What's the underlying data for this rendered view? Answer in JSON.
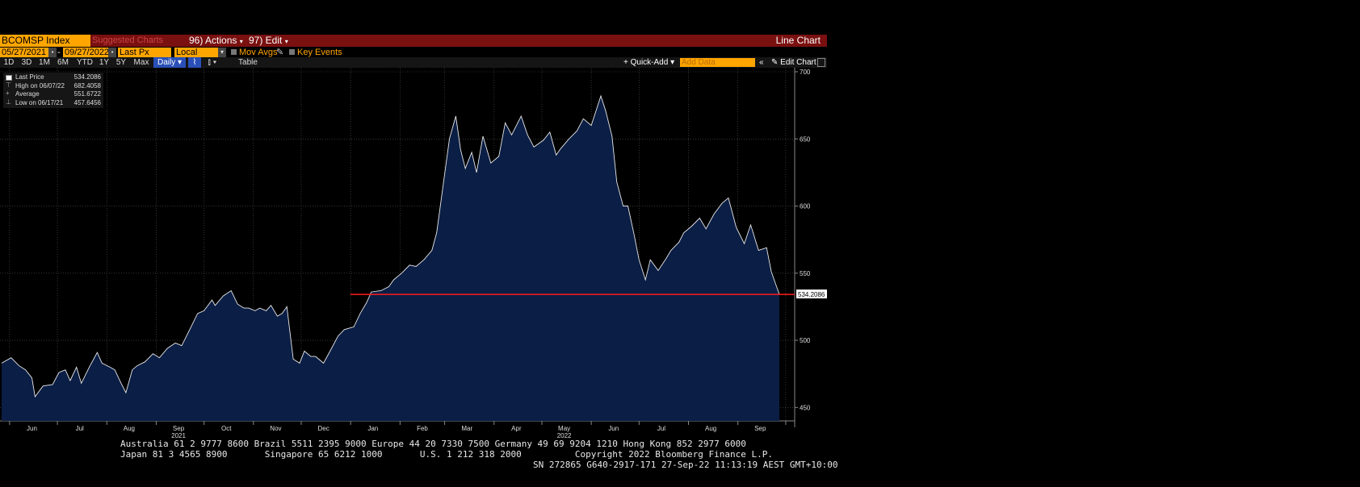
{
  "toolbar": {
    "ticker": "BCOMSP Index",
    "suggested": "Suggested Charts",
    "actions": "96) Actions",
    "edit": "97) Edit",
    "chart_type": "Line Chart"
  },
  "settings": {
    "start_date": "05/27/2021",
    "end_date": "09/27/2022",
    "field": "Last Px",
    "currency": "Local CCY",
    "mov_avgs": "Mov Avgs",
    "key_events": "Key Events"
  },
  "range_bar": {
    "ranges": [
      "1D",
      "3D",
      "1M",
      "6M",
      "YTD",
      "1Y",
      "5Y",
      "Max"
    ],
    "period": "Daily",
    "table": "Table",
    "quick_add": "Quick-Add",
    "add_data_placeholder": "Add Data",
    "edit_chart": "Edit Chart"
  },
  "legend": {
    "last_label": "Last Price",
    "last_value": "534.2086",
    "high_label": "High on 06/07/22",
    "high_value": "682.4058",
    "avg_label": "Average",
    "avg_value": "551.6722",
    "low_label": "Low on 06/17/21",
    "low_value": "457.6456"
  },
  "colors": {
    "area": "#0b1e45",
    "line": "#e8e8e8",
    "reference_line": "#ff1a1a",
    "accent": "#ffa500",
    "header": "#7a1010"
  },
  "chart_data": {
    "type": "area",
    "title": "",
    "xlabel": "",
    "ylabel": "",
    "ylim": [
      440,
      703
    ],
    "yticks": [
      450,
      500,
      550,
      600,
      650,
      700
    ],
    "month_labels": [
      "Jun",
      "Jul",
      "Aug",
      "Sep",
      "Oct",
      "Nov",
      "Dec",
      "Jan",
      "Feb",
      "Mar",
      "Apr",
      "May",
      "Jun",
      "Jul",
      "Aug",
      "Sep"
    ],
    "year_labels": [
      "2021",
      "2022"
    ],
    "last_price_label": "534.2086",
    "reference_line": {
      "value": 534.2086,
      "from": "2022-01-01"
    },
    "series": [
      {
        "points": [
          [
            "2021-05-27",
            483
          ],
          [
            "2021-06-02",
            487
          ],
          [
            "2021-06-07",
            481
          ],
          [
            "2021-06-11",
            478
          ],
          [
            "2021-06-15",
            472
          ],
          [
            "2021-06-17",
            458
          ],
          [
            "2021-06-22",
            466
          ],
          [
            "2021-06-28",
            467
          ],
          [
            "2021-07-02",
            476
          ],
          [
            "2021-07-06",
            478
          ],
          [
            "2021-07-09",
            470
          ],
          [
            "2021-07-13",
            480
          ],
          [
            "2021-07-16",
            468
          ],
          [
            "2021-07-21",
            480
          ],
          [
            "2021-07-26",
            491
          ],
          [
            "2021-07-29",
            483
          ],
          [
            "2021-08-03",
            480
          ],
          [
            "2021-08-06",
            478
          ],
          [
            "2021-08-10",
            468
          ],
          [
            "2021-08-13",
            461
          ],
          [
            "2021-08-17",
            478
          ],
          [
            "2021-08-20",
            481
          ],
          [
            "2021-08-25",
            484
          ],
          [
            "2021-08-30",
            490
          ],
          [
            "2021-09-03",
            487
          ],
          [
            "2021-09-08",
            494
          ],
          [
            "2021-09-13",
            498
          ],
          [
            "2021-09-17",
            496
          ],
          [
            "2021-09-22",
            508
          ],
          [
            "2021-09-27",
            520
          ],
          [
            "2021-10-01",
            522
          ],
          [
            "2021-10-06",
            530
          ],
          [
            "2021-10-08",
            526
          ],
          [
            "2021-10-13",
            533
          ],
          [
            "2021-10-18",
            537
          ],
          [
            "2021-10-22",
            527
          ],
          [
            "2021-10-26",
            524
          ],
          [
            "2021-10-29",
            524
          ],
          [
            "2021-11-02",
            522
          ],
          [
            "2021-11-05",
            524
          ],
          [
            "2021-11-09",
            522
          ],
          [
            "2021-11-12",
            526
          ],
          [
            "2021-11-16",
            518
          ],
          [
            "2021-11-19",
            520
          ],
          [
            "2021-11-22",
            525
          ],
          [
            "2021-11-26",
            486
          ],
          [
            "2021-11-30",
            483
          ],
          [
            "2021-12-03",
            492
          ],
          [
            "2021-12-07",
            488
          ],
          [
            "2021-12-10",
            488
          ],
          [
            "2021-12-15",
            483
          ],
          [
            "2021-12-20",
            494
          ],
          [
            "2021-12-24",
            503
          ],
          [
            "2021-12-28",
            508
          ],
          [
            "2022-01-03",
            510
          ],
          [
            "2022-01-07",
            520
          ],
          [
            "2022-01-11",
            528
          ],
          [
            "2022-01-14",
            536
          ],
          [
            "2022-01-20",
            537
          ],
          [
            "2022-01-25",
            540
          ],
          [
            "2022-01-28",
            545
          ],
          [
            "2022-02-02",
            550
          ],
          [
            "2022-02-07",
            556
          ],
          [
            "2022-02-11",
            555
          ],
          [
            "2022-02-16",
            560
          ],
          [
            "2022-02-21",
            567
          ],
          [
            "2022-02-24",
            580
          ],
          [
            "2022-02-28",
            615
          ],
          [
            "2022-03-04",
            650
          ],
          [
            "2022-03-08",
            667
          ],
          [
            "2022-03-11",
            642
          ],
          [
            "2022-03-14",
            628
          ],
          [
            "2022-03-18",
            640
          ],
          [
            "2022-03-21",
            625
          ],
          [
            "2022-03-25",
            652
          ],
          [
            "2022-03-30",
            632
          ],
          [
            "2022-04-04",
            637
          ],
          [
            "2022-04-08",
            662
          ],
          [
            "2022-04-12",
            653
          ],
          [
            "2022-04-18",
            667
          ],
          [
            "2022-04-22",
            653
          ],
          [
            "2022-04-26",
            644
          ],
          [
            "2022-05-02",
            649
          ],
          [
            "2022-05-06",
            655
          ],
          [
            "2022-05-10",
            638
          ],
          [
            "2022-05-13",
            643
          ],
          [
            "2022-05-18",
            650
          ],
          [
            "2022-05-23",
            656
          ],
          [
            "2022-05-27",
            665
          ],
          [
            "2022-06-01",
            660
          ],
          [
            "2022-06-07",
            682
          ],
          [
            "2022-06-10",
            671
          ],
          [
            "2022-06-14",
            652
          ],
          [
            "2022-06-17",
            618
          ],
          [
            "2022-06-21",
            600
          ],
          [
            "2022-06-24",
            600
          ],
          [
            "2022-06-28",
            578
          ],
          [
            "2022-07-01",
            560
          ],
          [
            "2022-07-05",
            545
          ],
          [
            "2022-07-08",
            560
          ],
          [
            "2022-07-13",
            552
          ],
          [
            "2022-07-18",
            561
          ],
          [
            "2022-07-21",
            567
          ],
          [
            "2022-07-26",
            573
          ],
          [
            "2022-07-29",
            580
          ],
          [
            "2022-08-03",
            585
          ],
          [
            "2022-08-08",
            591
          ],
          [
            "2022-08-12",
            583
          ],
          [
            "2022-08-17",
            594
          ],
          [
            "2022-08-22",
            602
          ],
          [
            "2022-08-26",
            606
          ],
          [
            "2022-08-31",
            584
          ],
          [
            "2022-09-05",
            572
          ],
          [
            "2022-09-09",
            586
          ],
          [
            "2022-09-14",
            567
          ],
          [
            "2022-09-19",
            569
          ],
          [
            "2022-09-22",
            551
          ],
          [
            "2022-09-27",
            534.2086
          ]
        ]
      }
    ]
  },
  "footer": {
    "line1": "Australia 61 2 9777 8600 Brazil 5511 2395 9000 Europe 44 20 7330 7500 Germany 49 69 9204 1210 Hong Kong 852 2977 6000",
    "line2": "Japan 81 3 4565 8900       Singapore 65 6212 1000       U.S. 1 212 318 2000          Copyright 2022 Bloomberg Finance L.P.",
    "line3": "SN 272865 G640-2917-171 27-Sep-22 11:13:19 AEST GMT+10:00"
  }
}
